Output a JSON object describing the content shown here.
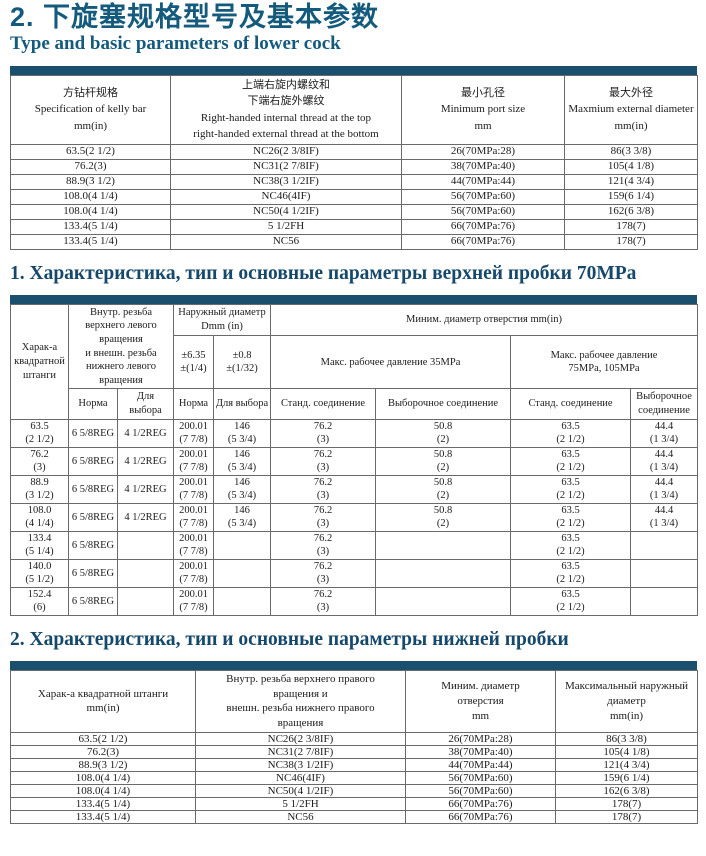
{
  "header": {
    "title_zh": "2. 下旋塞规格型号及基本参数",
    "title_en": "Type and basic parameters of lower cock"
  },
  "colors": {
    "title": "#135a7d",
    "section_heading": "#16486b",
    "table_top_bar": "#1b4f6e",
    "table_border": "#6a6a6a",
    "background": "#ffffff"
  },
  "table1": {
    "header": [
      "方钻杆规格\nSpecification of kelly bar\nmm(in)",
      "上端右旋内螺纹和\n下端右旋外螺纹\nRight-handed internal thread at the top\nright-handed external thread at the bottom",
      "最小孔径\nMinimum port size\nmm",
      "最大外径\nMaxmium external diameter mm(in)"
    ],
    "rows": [
      [
        "63.5(2 1/2)",
        "NC26(2 3/8IF)",
        "26(70MPa:28)",
        "86(3 3/8)"
      ],
      [
        "76.2(3)",
        "NC31(2 7/8IF)",
        "38(70MPa:40)",
        "105(4 1/8)"
      ],
      [
        "88.9(3 1/2)",
        "NC38(3 1/2IF)",
        "44(70MPa:44)",
        "121(4 3/4)"
      ],
      [
        "108.0(4 1/4)",
        "NC46(4IF)",
        "56(70MPa:60)",
        "159(6 1/4)"
      ],
      [
        "108.0(4 1/4)",
        "NC50(4 1/2IF)",
        "56(70MPa:60)",
        "162(6 3/8)"
      ],
      [
        "133.4(5 1/4)",
        "5 1/2FH",
        "66(70MPa:76)",
        "178(7)"
      ],
      [
        "133.4(5 1/4)",
        "NC56",
        "66(70MPa:76)",
        "178(7)"
      ]
    ]
  },
  "section1": {
    "title": "1. Характеристика, тип и основные параметры верхней пробки 70MPa"
  },
  "table2": {
    "header": {
      "kelly": "Харак-а\nквадратной\nштанги",
      "thread_group": "Внутр. резьба\nверхнего левого\nвращения\nи внешн. резьба\nнижнего левого\nвращения",
      "od_group": "Наружный диаметр\nDmm (in)",
      "tol1": "±6.35\n±(1/4)",
      "tol2": "±0.8\n±(1/32)",
      "min_group": "Миним. диаметр отверстия mm(in)",
      "p35": "Макс. рабочее давление 35MPa",
      "p75": "Макс. рабочее давление\n75MPa, 105MPa",
      "norma1": "Норма",
      "vybor1": "Для\nвыбора",
      "norma2": "Норма",
      "vybor2": "Для выбора",
      "std1": "Станд. соединение",
      "sel1": "Выборочное соединение",
      "std2": "Станд. соединение",
      "sel2": "Выборочное\nсоединение"
    },
    "rows": [
      [
        "63.5\n(2 1/2)",
        "6 5/8REG",
        "4 1/2REG",
        "200.01\n(7 7/8)",
        "146\n(5 3/4)",
        "76.2\n(3)",
        "50.8\n(2)",
        "63.5\n(2 1/2)",
        "44.4\n(1 3/4)"
      ],
      [
        "76.2\n(3)",
        "6 5/8REG",
        "4 1/2REG",
        "200.01\n(7 7/8)",
        "146\n(5 3/4)",
        "76.2\n(3)",
        "50.8\n(2)",
        "63.5\n(2 1/2)",
        "44.4\n(1 3/4)"
      ],
      [
        "88.9\n(3 1/2)",
        "6 5/8REG",
        "4 1/2REG",
        "200.01\n(7 7/8)",
        "146\n(5 3/4)",
        "76.2\n(3)",
        "50.8\n(2)",
        "63.5\n(2 1/2)",
        "44.4\n(1 3/4)"
      ],
      [
        "108.0\n(4 1/4)",
        "6 5/8REG",
        "4 1/2REG",
        "200.01\n(7 7/8)",
        "146\n(5 3/4)",
        "76.2\n(3)",
        "50.8\n(2)",
        "63.5\n(2 1/2)",
        "44.4\n(1 3/4)"
      ],
      [
        "133.4\n(5 1/4)",
        "6 5/8REG",
        "",
        "200.01\n(7 7/8)",
        "",
        "76.2\n(3)",
        "",
        "63.5\n(2 1/2)",
        ""
      ],
      [
        "140.0\n(5 1/2)",
        "6 5/8REG",
        "",
        "200.01\n(7 7/8)",
        "",
        "76.2\n(3)",
        "",
        "63.5\n(2 1/2)",
        ""
      ],
      [
        "152.4\n(6)",
        "6 5/8REG",
        "",
        "200.01\n(7 7/8)",
        "",
        "76.2\n(3)",
        "",
        "63.5\n(2 1/2)",
        ""
      ]
    ]
  },
  "section2": {
    "title": "2. Характеристика, тип и основные параметры нижней пробки"
  },
  "table3": {
    "header": [
      "Харак-а квадратной штанги\nmm(in)",
      "Внутр. резьба верхнего правого\nвращения и\nвнешн. резьба нижнего правого\nвращения",
      "Миним. диаметр\nотверстия\nmm",
      "Максимальный наружный\nдиаметр\nmm(in)"
    ],
    "rows": [
      [
        "63.5(2 1/2)",
        "NC26(2 3/8IF)",
        "26(70MPa:28)",
        "86(3 3/8)"
      ],
      [
        "76.2(3)",
        "NC31(2 7/8IF)",
        "38(70MPa:40)",
        "105(4 1/8)"
      ],
      [
        "88.9(3 1/2)",
        "NC38(3 1/2IF)",
        "44(70MPa:44)",
        "121(4 3/4)"
      ],
      [
        "108.0(4 1/4)",
        "NC46(4IF)",
        "56(70MPa:60)",
        "159(6 1/4)"
      ],
      [
        "108.0(4 1/4)",
        "NC50(4 1/2IF)",
        "56(70MPa:60)",
        "162(6 3/8)"
      ],
      [
        "133.4(5 1/4)",
        "5 1/2FH",
        "66(70MPa:76)",
        "178(7)"
      ],
      [
        "133.4(5 1/4)",
        "NC56",
        "66(70MPa:76)",
        "178(7)"
      ]
    ]
  }
}
